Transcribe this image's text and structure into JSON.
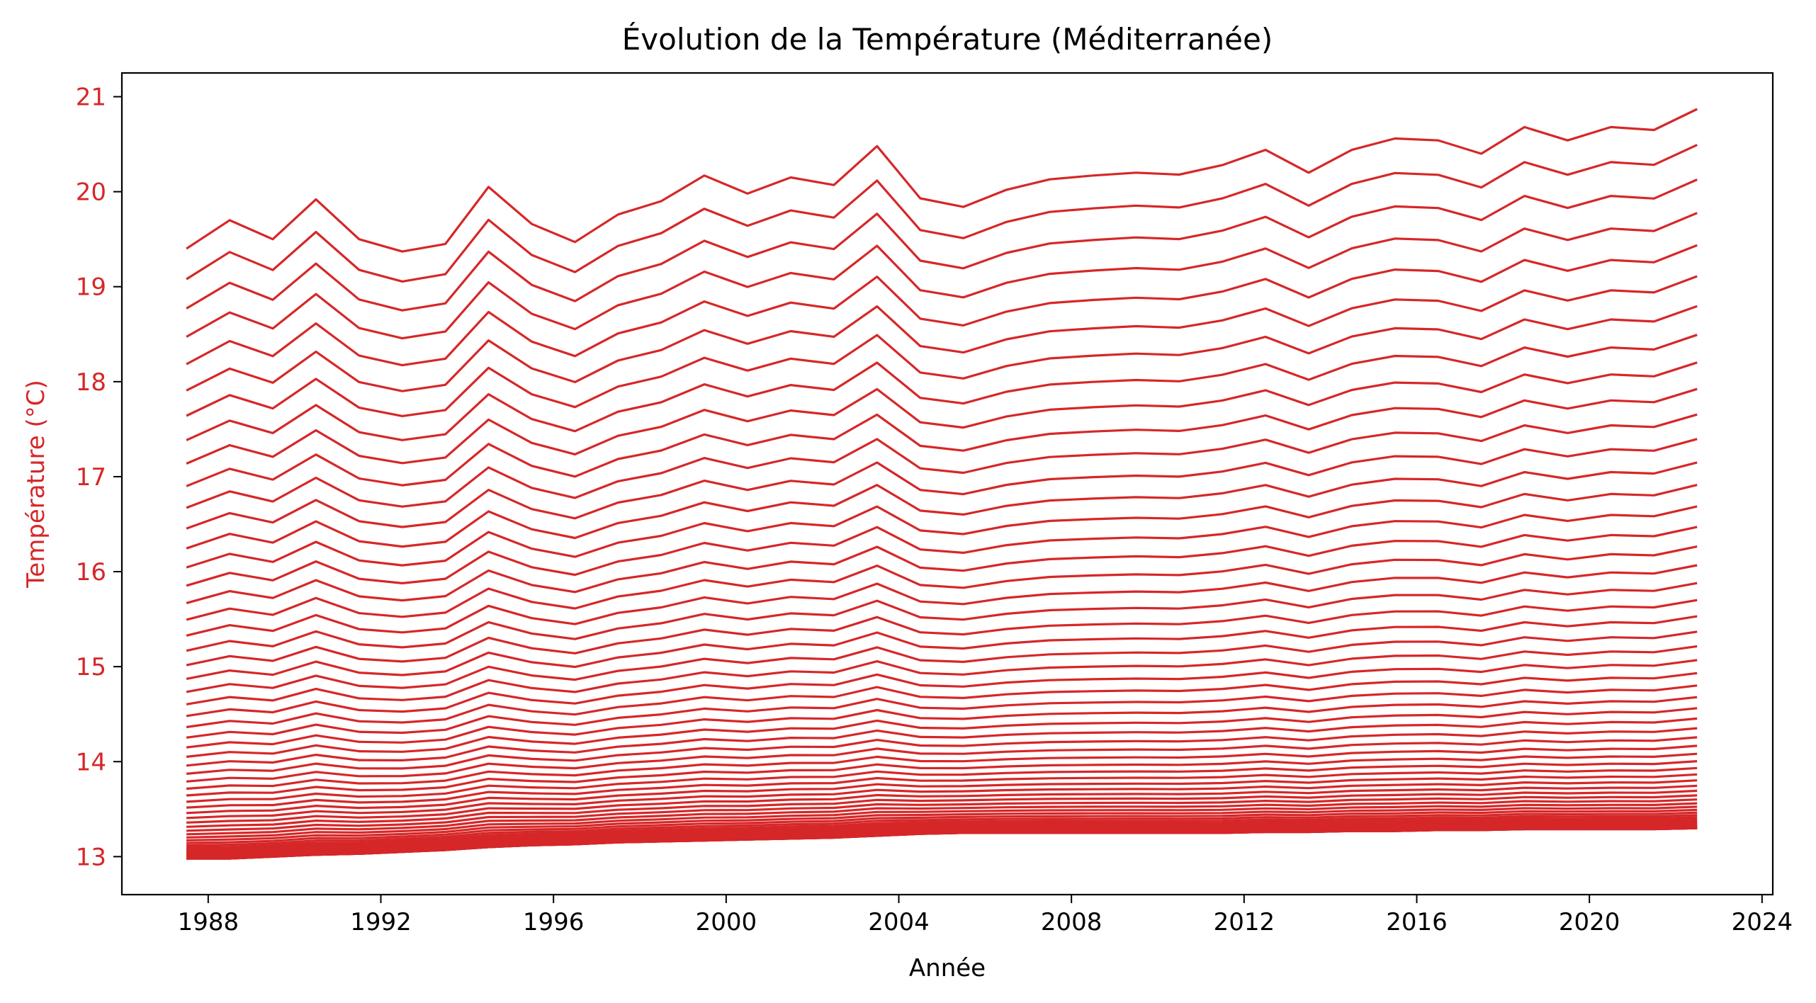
{
  "chart_data": {
    "type": "line",
    "title": "Évolution de la Température (Méditerranée)",
    "xlabel": "Année",
    "ylabel": "Température (°C)",
    "xlim": [
      "1986-01-01",
      "2024-04-01"
    ],
    "ylim": [
      12.6,
      21.25
    ],
    "x_ticks": [
      "1988",
      "1992",
      "1996",
      "2000",
      "2004",
      "2008",
      "2012",
      "2016",
      "2020",
      "2024"
    ],
    "y_ticks": [
      "13",
      "14",
      "15",
      "16",
      "17",
      "18",
      "19",
      "20",
      "21"
    ],
    "grid": false,
    "legend": "none",
    "line_color": "#d62728",
    "ylabel_color": "#d62728",
    "ytick_color": "#d62728",
    "x": [
      "1987-07-01",
      "1988-07-01",
      "1989-07-01",
      "1990-07-01",
      "1991-07-01",
      "1992-07-01",
      "1993-07-01",
      "1994-07-01",
      "1995-07-01",
      "1996-07-01",
      "1997-07-01",
      "1998-07-01",
      "1999-07-01",
      "2000-07-01",
      "2001-07-01",
      "2002-07-01",
      "2003-07-01",
      "2004-07-01",
      "2005-07-01",
      "2006-07-01",
      "2007-07-01",
      "2008-07-01",
      "2009-07-01",
      "2010-07-01",
      "2011-07-01",
      "2012-07-01",
      "2013-07-01",
      "2014-07-01",
      "2015-07-01",
      "2016-07-01",
      "2017-07-01",
      "2018-07-01",
      "2019-07-01",
      "2020-07-01",
      "2021-07-01",
      "2022-07-01"
    ],
    "bottom_profile": [
      12.98,
      12.98,
      13.0,
      13.02,
      13.03,
      13.05,
      13.07,
      13.1,
      13.12,
      13.13,
      13.15,
      13.16,
      13.17,
      13.18,
      13.19,
      13.2,
      13.22,
      13.24,
      13.25,
      13.25,
      13.25,
      13.25,
      13.25,
      13.25,
      13.25,
      13.26,
      13.26,
      13.27,
      13.27,
      13.28,
      13.28,
      13.29,
      13.29,
      13.29,
      13.29,
      13.3
    ],
    "top_profile": [
      19.4,
      19.7,
      19.5,
      19.92,
      19.5,
      19.37,
      19.45,
      20.05,
      19.66,
      19.47,
      19.76,
      19.9,
      20.17,
      19.98,
      20.15,
      20.07,
      20.48,
      19.93,
      19.84,
      20.02,
      20.13,
      20.17,
      20.2,
      20.18,
      20.28,
      20.44,
      20.2,
      20.44,
      20.56,
      20.54,
      20.4,
      20.68,
      20.54,
      20.68,
      20.65,
      20.87
    ],
    "n_series": 64
  }
}
